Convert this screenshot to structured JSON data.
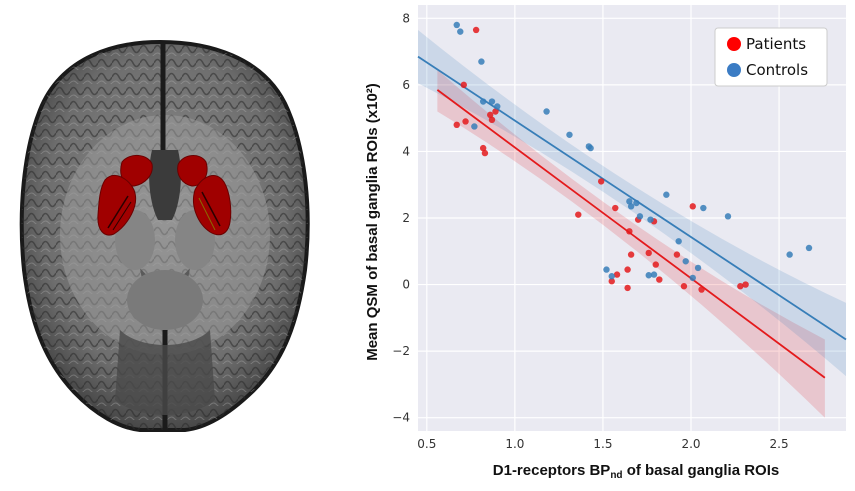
{
  "image_panel": {
    "name": "axial-brain-mri",
    "roi_color": "#a00000"
  },
  "chart_data": {
    "type": "scatter",
    "xlabel_main": "D1-receptors BP",
    "xlabel_sub": "nd",
    "xlabel_tail": " of basal ganglia ROIs",
    "ylabel": "Mean QSM of  basal ganglia ROIs (x10²)",
    "xlim": [
      0.45,
      2.88
    ],
    "ylim": [
      -4.4,
      8.4
    ],
    "xticks": [
      "0.5",
      "1.0",
      "1.5",
      "2.0",
      "2.5"
    ],
    "xtick_values": [
      0.5,
      1.0,
      1.5,
      2.0,
      2.5
    ],
    "yticks": [
      "−4",
      "−2",
      "0",
      "2",
      "4",
      "6",
      "8"
    ],
    "ytick_values": [
      -4,
      -2,
      0,
      2,
      4,
      6,
      8
    ],
    "grid": true,
    "legend_position": "top-right",
    "series": [
      {
        "name": "Patients",
        "color": "#e41a1c",
        "points": [
          [
            0.78,
            7.65
          ],
          [
            0.71,
            6.0
          ],
          [
            0.67,
            4.8
          ],
          [
            0.72,
            4.9
          ],
          [
            0.86,
            5.1
          ],
          [
            0.87,
            4.95
          ],
          [
            0.89,
            5.2
          ],
          [
            0.82,
            4.1
          ],
          [
            0.83,
            3.95
          ],
          [
            1.49,
            3.1
          ],
          [
            1.36,
            2.1
          ],
          [
            1.57,
            2.3
          ],
          [
            1.65,
            1.6
          ],
          [
            1.7,
            1.95
          ],
          [
            1.76,
            0.95
          ],
          [
            1.79,
            1.9
          ],
          [
            1.66,
            0.9
          ],
          [
            1.64,
            0.45
          ],
          [
            1.55,
            0.1
          ],
          [
            1.58,
            0.3
          ],
          [
            1.64,
            -0.1
          ],
          [
            1.8,
            0.6
          ],
          [
            1.82,
            0.15
          ],
          [
            1.92,
            0.9
          ],
          [
            1.96,
            -0.05
          ],
          [
            2.01,
            2.35
          ],
          [
            2.06,
            -0.15
          ],
          [
            2.28,
            -0.05
          ],
          [
            2.31,
            0.0
          ]
        ],
        "fit": {
          "x": [
            0.56,
            2.76
          ],
          "y": [
            5.85,
            -2.8
          ]
        },
        "ci_upper": [
          6.45,
          -1.65
        ],
        "ci_lower": [
          5.2,
          -4.0
        ]
      },
      {
        "name": "Controls",
        "color": "#377eb8",
        "points": [
          [
            0.67,
            7.8
          ],
          [
            0.69,
            7.6
          ],
          [
            0.81,
            6.7
          ],
          [
            0.82,
            5.5
          ],
          [
            0.87,
            5.5
          ],
          [
            0.9,
            5.35
          ],
          [
            0.77,
            4.75
          ],
          [
            1.18,
            5.2
          ],
          [
            1.31,
            4.5
          ],
          [
            1.42,
            4.15
          ],
          [
            1.43,
            4.1
          ],
          [
            1.65,
            2.5
          ],
          [
            1.66,
            2.35
          ],
          [
            1.69,
            2.45
          ],
          [
            1.71,
            2.05
          ],
          [
            1.77,
            1.95
          ],
          [
            1.86,
            2.7
          ],
          [
            1.93,
            1.3
          ],
          [
            1.97,
            0.7
          ],
          [
            2.01,
            0.2
          ],
          [
            2.04,
            0.5
          ],
          [
            2.07,
            2.3
          ],
          [
            2.21,
            2.05
          ],
          [
            1.52,
            0.45
          ],
          [
            1.55,
            0.25
          ],
          [
            1.79,
            0.3
          ],
          [
            1.76,
            0.28
          ],
          [
            2.56,
            0.9
          ],
          [
            2.67,
            1.1
          ]
        ],
        "fit": {
          "x": [
            0.45,
            2.88
          ],
          "y": [
            6.85,
            -1.65
          ]
        },
        "ci_upper": [
          7.65,
          -0.55
        ],
        "ci_lower": [
          6.05,
          -2.75
        ]
      }
    ]
  }
}
